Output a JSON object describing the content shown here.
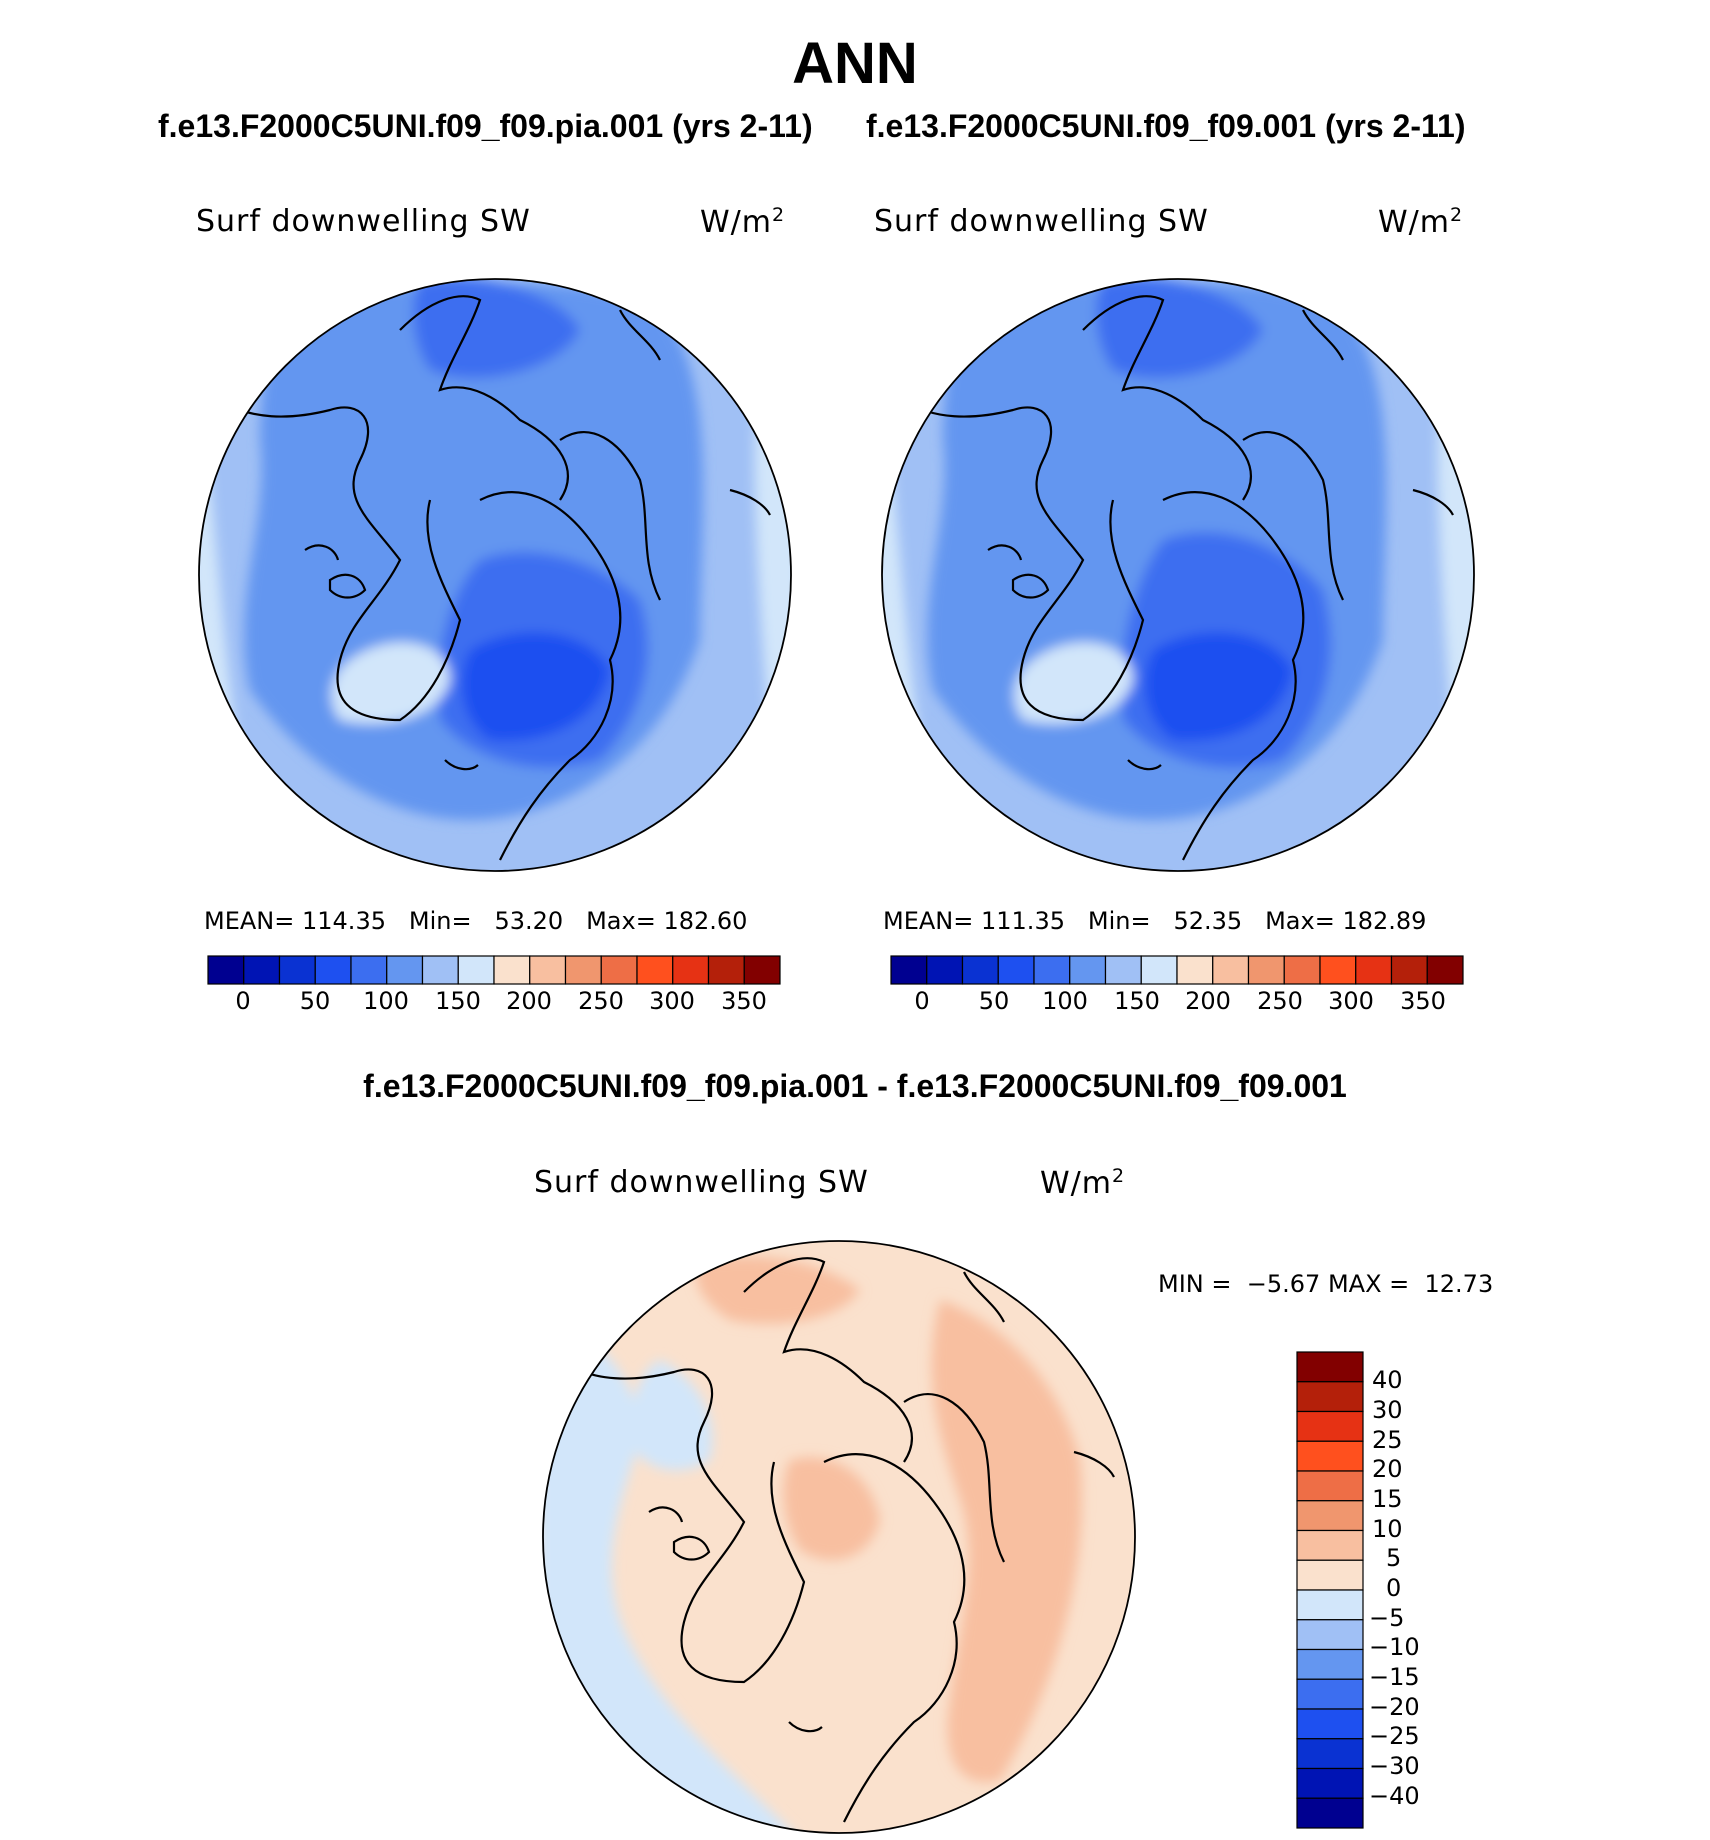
{
  "figure": {
    "title": "ANN",
    "left_case": "f.e13.F2000C5UNI.f09_f09.pia.001 (yrs 2-11)",
    "right_case": "f.e13.F2000C5UNI.f09_f09.001 (yrs 2-11)",
    "diff_title": "f.e13.F2000C5UNI.f09_f09.pia.001 - f.e13.F2000C5UNI.f09_f09.001"
  },
  "chart_data": [
    {
      "type": "heatmap",
      "projection": "north polar stereographic",
      "variable": "Surf downwelling SW",
      "units": "W/m",
      "units_exp": "2",
      "stats": {
        "mean_label": "MEAN=",
        "mean": "114.35",
        "min_label": "Min=",
        "min": "53.20",
        "max_label": "Max=",
        "max": "182.60"
      },
      "colorbar_ticks": [
        "0",
        "50",
        "100",
        "150",
        "200",
        "250",
        "300",
        "350"
      ],
      "colorbar_colors": [
        "#000090",
        "#0014b4",
        "#0a32d2",
        "#1e50f0",
        "#3c6ef0",
        "#6496f0",
        "#a0c0f5",
        "#d2e6fa",
        "#fae1cd",
        "#f8bfa0",
        "#f0966e",
        "#ee6e46",
        "#ff501e",
        "#e63214",
        "#b4200a",
        "#820000"
      ]
    },
    {
      "type": "heatmap",
      "projection": "north polar stereographic",
      "variable": "Surf downwelling SW",
      "units": "W/m",
      "units_exp": "2",
      "stats": {
        "mean_label": "MEAN=",
        "mean": "111.35",
        "min_label": "Min=",
        "min": "52.35",
        "max_label": "Max=",
        "max": "182.89"
      },
      "colorbar_ticks": [
        "0",
        "50",
        "100",
        "150",
        "200",
        "250",
        "300",
        "350"
      ],
      "colorbar_colors": [
        "#000090",
        "#0014b4",
        "#0a32d2",
        "#1e50f0",
        "#3c6ef0",
        "#6496f0",
        "#a0c0f5",
        "#d2e6fa",
        "#fae1cd",
        "#f8bfa0",
        "#f0966e",
        "#ee6e46",
        "#ff501e",
        "#e63214",
        "#b4200a",
        "#820000"
      ]
    },
    {
      "type": "heatmap",
      "projection": "north polar stereographic",
      "variable": "Surf downwelling SW",
      "units": "W/m",
      "units_exp": "2",
      "stats": {
        "min_label": "MIN =",
        "min": "−5.67",
        "max_label": "MAX =",
        "max": "12.73"
      },
      "colorbar_ticks": [
        "40",
        "30",
        "25",
        "20",
        "15",
        "10",
        "5",
        "0",
        "−5",
        "−10",
        "−15",
        "−20",
        "−25",
        "−30",
        "−40"
      ],
      "colorbar_colors": [
        "#820000",
        "#b4200a",
        "#e63214",
        "#ff501e",
        "#ee6e46",
        "#f0966e",
        "#f8bfa0",
        "#fae1cd",
        "#d2e6fa",
        "#a0c0f5",
        "#6496f0",
        "#3c6ef0",
        "#1e50f0",
        "#0a32d2",
        "#0014b4",
        "#000090"
      ]
    }
  ]
}
